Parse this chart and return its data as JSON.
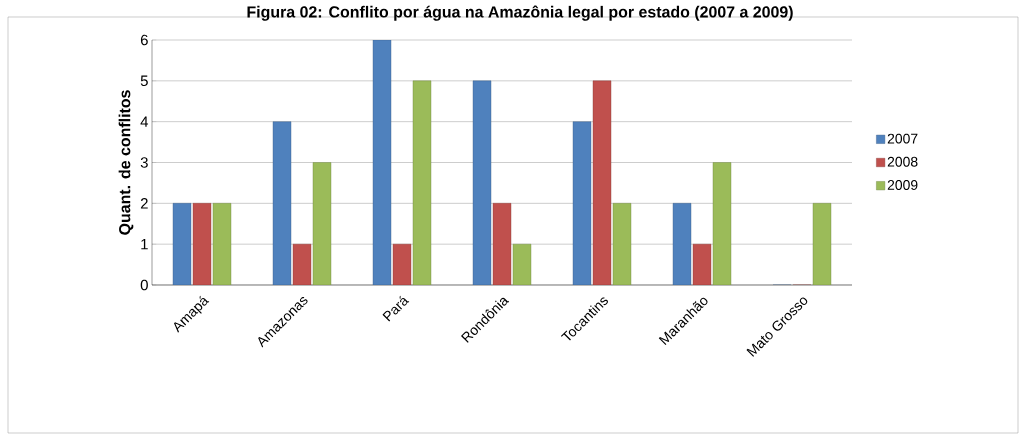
{
  "chart_data": {
    "type": "bar",
    "title": "Figura 02: Conflito por água na Amazônia legal por estado (2007 a 2009)",
    "ylabel": "Quant. de conflitos",
    "categories": [
      "Amapá",
      "Amazonas",
      "Pará",
      "Rondônia",
      "Tocantins",
      "Maranhão",
      "Mato Grosso"
    ],
    "series": [
      {
        "name": "2007",
        "color": "#4f81bd",
        "values": [
          2,
          4,
          6,
          5,
          4,
          2,
          0
        ]
      },
      {
        "name": "2008",
        "color": "#c0504d",
        "values": [
          2,
          1,
          1,
          2,
          5,
          1,
          0
        ]
      },
      {
        "name": "2009",
        "color": "#9bbb59",
        "values": [
          2,
          3,
          5,
          1,
          2,
          3,
          2
        ]
      }
    ],
    "ylim": [
      0,
      6
    ],
    "yticks": [
      0,
      1,
      2,
      3,
      4,
      5,
      6
    ],
    "grid": "y",
    "legend": "right"
  }
}
